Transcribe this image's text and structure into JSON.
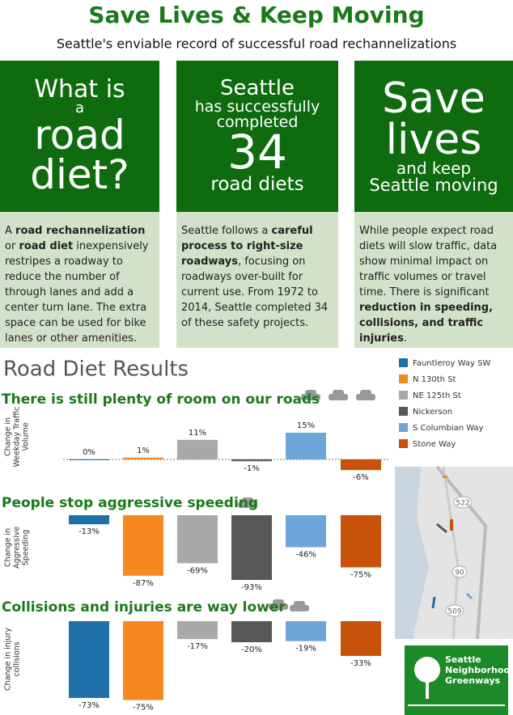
{
  "header": {
    "title": "Save Lives & Keep Moving",
    "subtitle": "Seattle's enviable record of successful road rechannelizations"
  },
  "panels": [
    {
      "heading": [
        "What is",
        "a",
        "road",
        "diet?"
      ],
      "body": [
        "A ",
        {
          "bold": "road rechannelization"
        },
        " or ",
        {
          "bold": "road diet"
        },
        " inexpensively restripes a roadway to reduce the number of through lanes and add a center turn lane. The extra space can be used for bike lanes or other amenities."
      ]
    },
    {
      "heading": [
        "Seattle",
        "has successfully",
        "completed",
        "34",
        "road diets"
      ],
      "body": [
        "Seattle follows a ",
        {
          "bold": "careful process to right-size roadways"
        },
        ", focusing on roadways over-built for current use. From 1972 to 2014, Seattle completed 34 of these safety projects."
      ]
    },
    {
      "heading": [
        "Save",
        "lives",
        "and keep",
        "Seattle moving"
      ],
      "body": [
        "While people expect road diets will slow traffic, data show minimal impact on traffic volumes or travel time. There is significant ",
        {
          "bold": "reduction in speeding, collisions, and traffic injuries"
        },
        "."
      ]
    }
  ],
  "section_title": "Road Diet Results",
  "chart_data": [
    {
      "type": "bar",
      "title": "There is still plenty of room on our roads",
      "ylabel": [
        "Change in",
        "Weekday Traffic",
        "Volume"
      ],
      "categories": [
        "Fauntleroy Way SW",
        "N 130th St",
        "NE 125th St",
        "Nickerson",
        "S Columbian Way",
        "Stone Way"
      ],
      "colors": [
        "#1f6fa8",
        "#f5891f",
        "#a9a9a9",
        "#575757",
        "#6ea6d9",
        "#c8520a"
      ],
      "values": [
        0,
        1,
        11,
        -1,
        15,
        -6
      ],
      "value_labels": [
        "0%",
        "1%",
        "11%",
        "-1%",
        "15%",
        "-6%"
      ]
    },
    {
      "type": "bar",
      "title": "People stop aggressive speeding",
      "ylabel": [
        "Change in",
        "Aggressive",
        "Speeding"
      ],
      "colors": [
        "#1f6fa8",
        "#f5891f",
        "#a9a9a9",
        "#575757",
        "#6ea6d9",
        "#c8520a"
      ],
      "values": [
        -13,
        -87,
        -69,
        -93,
        -46,
        -75
      ],
      "value_labels": [
        "-13%",
        "-87%",
        "-69%",
        "-93%",
        "-46%",
        "-75%"
      ]
    },
    {
      "type": "bar",
      "title": "Collisions and injuries are way lower",
      "ylabel": [
        "Change in injury",
        "collisions"
      ],
      "colors": [
        "#1f6fa8",
        "#f5891f",
        "#a9a9a9",
        "#575757",
        "#6ea6d9",
        "#c8520a"
      ],
      "values": [
        -73,
        -75,
        -17,
        -20,
        -19,
        -33
      ],
      "value_labels": [
        "-73%",
        "-75%",
        "-17%",
        "-20%",
        "-19%",
        "-33%"
      ]
    }
  ],
  "map": {
    "labels": [
      "522",
      "90",
      "509"
    ]
  },
  "logo": {
    "lines": [
      "Seattle",
      "Neighborhood",
      "Greenways"
    ]
  }
}
